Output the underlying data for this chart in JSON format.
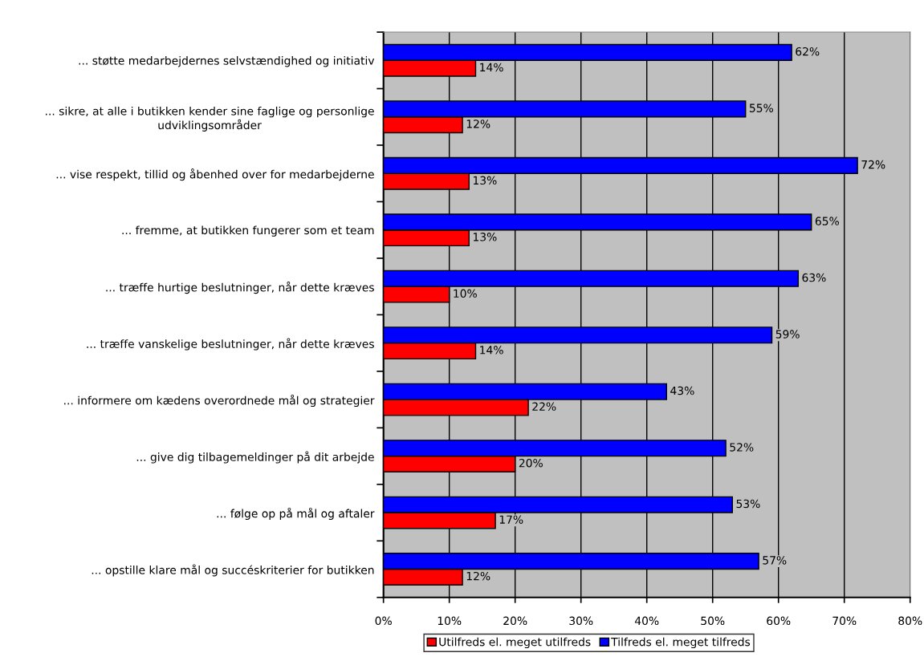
{
  "chart_data": {
    "type": "bar",
    "orientation": "horizontal",
    "categories": [
      "... støtte medarbejdernes selvstændighed og initiativ",
      "... sikre, at alle i butikken kender sine faglige og personlige\nudviklingsområder",
      "... vise respekt, tillid og åbenhed over for medarbejderne",
      "... fremme, at butikken fungerer som et team",
      "... træffe hurtige beslutninger, når dette kræves",
      "... træffe vanskelige beslutninger, når dette kræves",
      "... informere om kædens overordnede mål og strategier",
      "... give dig tilbagemeldinger på dit arbejde",
      "... følge op på mål og aftaler",
      "... opstille klare mål og succéskriterier for butikken"
    ],
    "series": [
      {
        "name": "Utilfreds el. meget utilfreds",
        "color": "#ff0000",
        "values": [
          14,
          12,
          13,
          13,
          10,
          14,
          22,
          20,
          17,
          12
        ],
        "value_labels": [
          "14%",
          "12%",
          "13%",
          "13%",
          "10%",
          "14%",
          "22%",
          "20%",
          "17%",
          "12%"
        ]
      },
      {
        "name": "Tilfreds el. meget tilfreds",
        "color": "#0000ff",
        "values": [
          62,
          55,
          72,
          65,
          63,
          59,
          43,
          52,
          53,
          57
        ],
        "value_labels": [
          "62%",
          "55%",
          "72%",
          "65%",
          "63%",
          "59%",
          "43%",
          "52%",
          "53%",
          "57%"
        ]
      }
    ],
    "xlim": [
      0,
      80
    ],
    "xticks": [
      {
        "value": 0,
        "label": "0%"
      },
      {
        "value": 10,
        "label": "10%"
      },
      {
        "value": 20,
        "label": "20%"
      },
      {
        "value": 30,
        "label": "30%"
      },
      {
        "value": 40,
        "label": "40%"
      },
      {
        "value": 50,
        "label": "50%"
      },
      {
        "value": 60,
        "label": "60%"
      },
      {
        "value": 70,
        "label": "70%"
      },
      {
        "value": 80,
        "label": "80%"
      }
    ],
    "grid": "x",
    "legend": "bottom"
  }
}
